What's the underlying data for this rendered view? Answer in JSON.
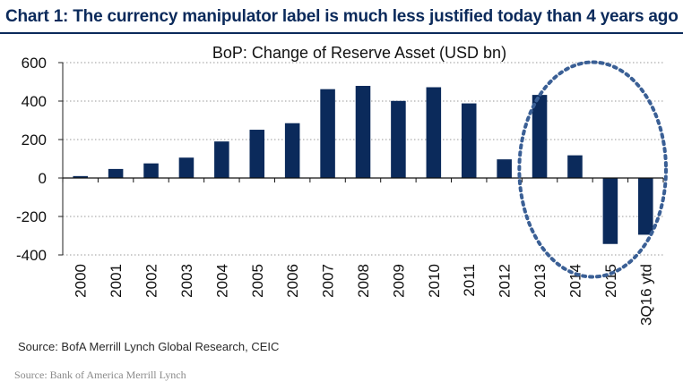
{
  "header": {
    "title": "Chart 1:  The currency manipulator label is much less justified today than 4 years ago"
  },
  "chart_data": {
    "type": "bar",
    "title": "BoP: Change of Reserve Asset (USD bn)",
    "xlabel": "",
    "ylabel": "",
    "categories": [
      "2000",
      "2001",
      "2002",
      "2003",
      "2004",
      "2005",
      "2006",
      "2007",
      "2008",
      "2009",
      "2010",
      "2011",
      "2012",
      "2013",
      "2014",
      "2015",
      "3Q16 ytd"
    ],
    "values": [
      10,
      47,
      76,
      106,
      190,
      251,
      285,
      462,
      479,
      401,
      472,
      388,
      97,
      432,
      118,
      -343,
      -295
    ],
    "ylim": [
      -400,
      600
    ],
    "yticks": [
      -400,
      -200,
      0,
      200,
      400,
      600
    ],
    "ytick_labels": [
      "-400",
      "-200",
      "0",
      "200",
      "400",
      "600"
    ],
    "grid": true,
    "bar_color": "#0b2a5b",
    "annotation": {
      "shape": "dotted-ellipse",
      "highlights": [
        "2013",
        "2014",
        "2015",
        "3Q16 ytd"
      ],
      "color": "#3a5f95"
    }
  },
  "footer": {
    "source_line": "Source: BofA Merrill Lynch Global Research, CEIC",
    "source_credit": "Source: Bank of America Merrill Lynch"
  }
}
